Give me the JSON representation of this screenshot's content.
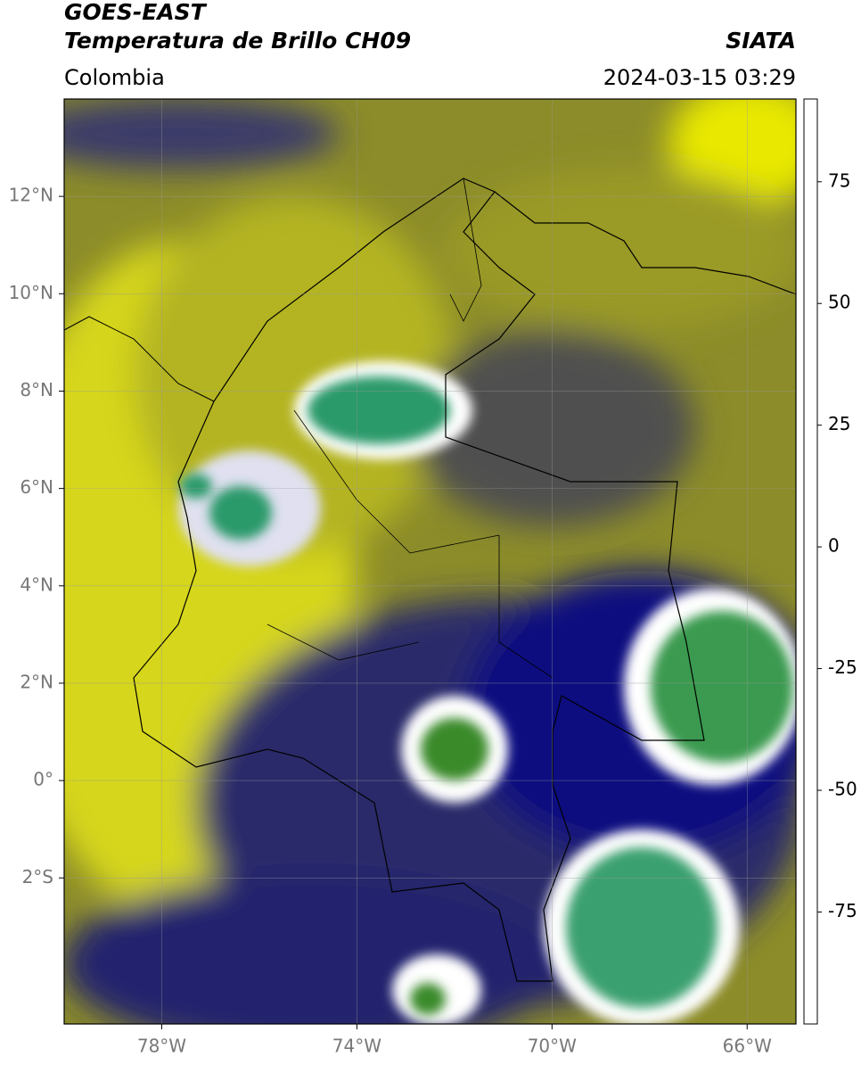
{
  "header": {
    "title_line1": "GOES-EAST",
    "title_line2": "Temperatura de Brillo CH09",
    "region": "Colombia",
    "source": "SIATA",
    "timestamp": "2024-03-15 03:29"
  },
  "map": {
    "xlim": [
      -80,
      -65
    ],
    "ylim": [
      -5,
      14
    ],
    "xticks": [
      {
        "value": -78,
        "label": "78°W"
      },
      {
        "value": -74,
        "label": "74°W"
      },
      {
        "value": -70,
        "label": "70°W"
      },
      {
        "value": -66,
        "label": "66°W"
      }
    ],
    "yticks": [
      {
        "value": 12,
        "label": "12°N"
      },
      {
        "value": 10,
        "label": "10°N"
      },
      {
        "value": 8,
        "label": "8°N"
      },
      {
        "value": 6,
        "label": "6°N"
      },
      {
        "value": 4,
        "label": "4°N"
      },
      {
        "value": 2,
        "label": "2°N"
      },
      {
        "value": 0,
        "label": "0°"
      },
      {
        "value": -2,
        "label": "2°S"
      }
    ],
    "grid": true
  },
  "colorbar": {
    "lim": [
      -98,
      92
    ],
    "ticks": [
      75,
      50,
      25,
      0,
      -25,
      -50,
      -75
    ],
    "stops": [
      {
        "value": -98,
        "color": "#ffffff"
      },
      {
        "value": -94,
        "color": "#ffffff"
      },
      {
        "value": -93,
        "color": "#00e5e5"
      },
      {
        "value": -80,
        "color": "#20b090"
      },
      {
        "value": -65,
        "color": "#3a8a2a"
      },
      {
        "value": -55,
        "color": "#c8dcb8"
      },
      {
        "value": -50,
        "color": "#ffffff"
      },
      {
        "value": -40,
        "color": "#8080c8"
      },
      {
        "value": -30,
        "color": "#000090"
      },
      {
        "value": -25,
        "color": "#1a2070"
      },
      {
        "value": -20,
        "color": "#444444"
      },
      {
        "value": -15,
        "color": "#8a8a20"
      },
      {
        "value": -5,
        "color": "#e8e800"
      },
      {
        "value": 0,
        "color": "#f0a000"
      },
      {
        "value": 8,
        "color": "#f01010"
      },
      {
        "value": 8.01,
        "color": "#000000"
      },
      {
        "value": 92,
        "color": "#000000"
      }
    ]
  }
}
